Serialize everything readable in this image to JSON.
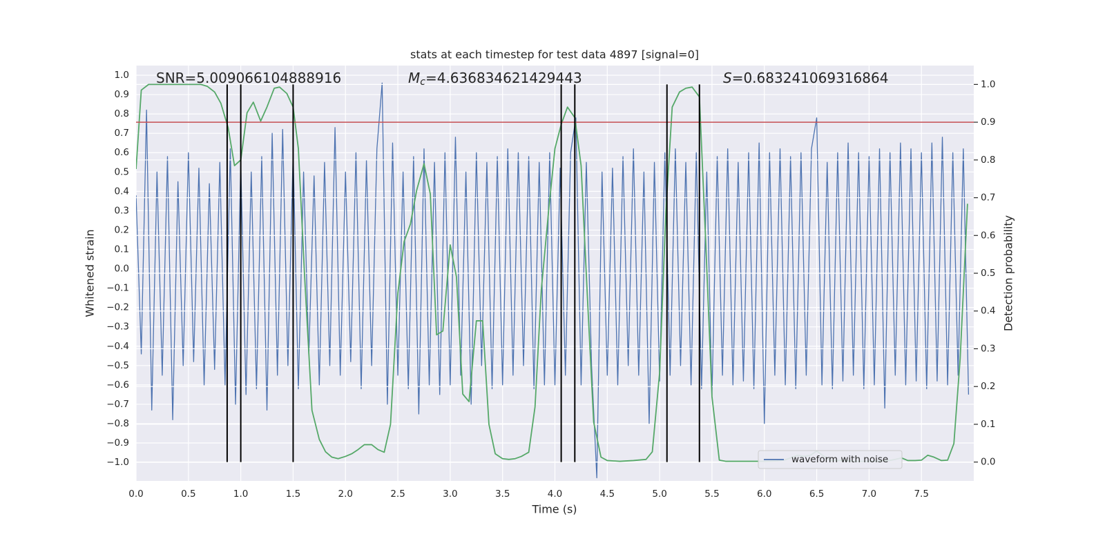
{
  "chart_data": {
    "type": "line",
    "title": "stats at each timestep for test data 4897 [signal=0]",
    "xlabel": "Time (s)",
    "ylabel": "Whitened strain",
    "y2label": "Detection probability",
    "xlim": [
      0,
      8
    ],
    "ylim": [
      -1.096,
      1.05
    ],
    "y2lim": [
      -0.05,
      1.05
    ],
    "grid": true,
    "legend": "lower right",
    "xticks": [
      {
        "value": 0,
        "label": "0.0"
      },
      0.5,
      {
        "value": 1,
        "label": "1.0"
      },
      1.5,
      {
        "value": 2,
        "label": "2.0"
      },
      2.5,
      {
        "value": 3,
        "label": "3.0"
      },
      3.5,
      {
        "value": 4,
        "label": "4.0"
      },
      4.5,
      {
        "value": 5,
        "label": "5.0"
      },
      5.5,
      {
        "value": 6,
        "label": "6.0"
      },
      6.5,
      {
        "value": 7,
        "label": "7.0"
      },
      7.5
    ],
    "yticks": [
      {
        "value": -1,
        "label": "−1.0"
      },
      {
        "value": -0.9,
        "label": "−0.9"
      },
      {
        "value": -0.8,
        "label": "−0.8"
      },
      {
        "value": -0.7,
        "label": "−0.7"
      },
      {
        "value": -0.6,
        "label": "−0.6"
      },
      {
        "value": -0.5,
        "label": "−0.5"
      },
      {
        "value": -0.4,
        "label": "−0.4"
      },
      {
        "value": -0.3,
        "label": "−0.3"
      },
      {
        "value": -0.2,
        "label": "−0.2"
      },
      {
        "value": -0.1,
        "label": "−0.1"
      },
      {
        "value": 0,
        "label": "0.0"
      },
      0.1,
      0.2,
      0.3,
      0.4,
      0.5,
      0.6,
      0.7,
      0.8,
      0.9,
      {
        "value": 1,
        "label": "1.0"
      }
    ],
    "y2ticks": [
      {
        "value": 0,
        "label": "0.0"
      },
      0.1,
      0.2,
      0.3,
      0.4,
      0.5,
      0.6,
      0.7,
      0.8,
      0.9,
      {
        "value": 1,
        "label": "1.0"
      }
    ],
    "annotations": [
      {
        "text": "SNR=5.009066104888916"
      },
      {
        "symbol": "M",
        "subscript": "c",
        "text": "=4.636834621429443"
      },
      {
        "symbol": "S",
        "text": "=0.683241069316864"
      }
    ],
    "series": [
      {
        "name": "waveform with noise",
        "color": "#4c72b0",
        "x": [
          0,
          0.05,
          0.1,
          0.15,
          0.2,
          0.25,
          0.3,
          0.35,
          0.4,
          0.45,
          0.5,
          0.55,
          0.6,
          0.65,
          0.7,
          0.75,
          0.8,
          0.85,
          0.9,
          0.95,
          1,
          1.05,
          1.1,
          1.15,
          1.2,
          1.25,
          1.3,
          1.35,
          1.4,
          1.45,
          1.5,
          1.55,
          1.6,
          1.65,
          1.7,
          1.75,
          1.8,
          1.85,
          1.9,
          1.95,
          2,
          2.05,
          2.1,
          2.15,
          2.2,
          2.25,
          2.3,
          2.35,
          2.4,
          2.45,
          2.5,
          2.55,
          2.6,
          2.65,
          2.7,
          2.75,
          2.8,
          2.85,
          2.9,
          2.95,
          3,
          3.05,
          3.1,
          3.15,
          3.2,
          3.25,
          3.3,
          3.35,
          3.4,
          3.45,
          3.5,
          3.55,
          3.6,
          3.65,
          3.7,
          3.75,
          3.8,
          3.85,
          3.9,
          3.95,
          4,
          4.05,
          4.1,
          4.15,
          4.2,
          4.25,
          4.3,
          4.35,
          4.4,
          4.45,
          4.5,
          4.55,
          4.6,
          4.65,
          4.7,
          4.75,
          4.8,
          4.85,
          4.9,
          4.95,
          5,
          5.05,
          5.1,
          5.15,
          5.2,
          5.25,
          5.3,
          5.35,
          5.4,
          5.45,
          5.5,
          5.55,
          5.6,
          5.65,
          5.7,
          5.75,
          5.8,
          5.85,
          5.9,
          5.95,
          6,
          6.05,
          6.1,
          6.15,
          6.2,
          6.25,
          6.3,
          6.35,
          6.4,
          6.45,
          6.5,
          6.55,
          6.6,
          6.65,
          6.7,
          6.75,
          6.8,
          6.85,
          6.9,
          6.95,
          7,
          7.05,
          7.1,
          7.15,
          7.2,
          7.25,
          7.3,
          7.35,
          7.4,
          7.45,
          7.5,
          7.55,
          7.6,
          7.65,
          7.7,
          7.75,
          7.8,
          7.85,
          7.9,
          7.95
        ],
        "values": [
          0.38,
          -0.44,
          0.82,
          -0.73,
          0.5,
          -0.55,
          0.58,
          -0.78,
          0.45,
          -0.5,
          0.6,
          -0.48,
          0.52,
          -0.6,
          0.44,
          -0.52,
          0.55,
          -0.6,
          0.62,
          -0.7,
          0.55,
          -0.65,
          0.5,
          -0.62,
          0.58,
          -0.73,
          0.7,
          -0.55,
          0.72,
          -0.5,
          0.6,
          -0.62,
          0.5,
          -0.45,
          0.48,
          -0.6,
          0.55,
          -0.5,
          0.73,
          -0.55,
          0.5,
          -0.48,
          0.6,
          -0.62,
          0.56,
          -0.5,
          0.62,
          0.96,
          -0.7,
          0.65,
          -0.55,
          0.5,
          -0.62,
          0.58,
          -0.75,
          0.62,
          -0.6,
          0.55,
          -0.65,
          0.6,
          -0.6,
          0.68,
          -0.55,
          0.5,
          -0.7,
          0.6,
          -0.5,
          0.55,
          -0.62,
          0.58,
          -0.6,
          0.62,
          -0.55,
          0.6,
          -0.5,
          0.58,
          -0.62,
          0.55,
          -0.6,
          0.6,
          -0.6,
          0.52,
          -0.55,
          0.6,
          0.78,
          -0.6,
          0.55,
          -0.5,
          -1.08,
          0.5,
          -0.55,
          0.52,
          -0.6,
          0.58,
          -0.5,
          0.62,
          -0.55,
          0.5,
          -0.8,
          0.55,
          -0.58,
          0.6,
          -0.55,
          0.62,
          -0.5,
          0.55,
          -0.6,
          0.6,
          -0.62,
          0.5,
          -0.65,
          0.58,
          -0.55,
          0.62,
          -0.6,
          0.55,
          -0.58,
          0.6,
          -0.62,
          0.65,
          -0.8,
          0.6,
          -0.55,
          0.62,
          -0.6,
          0.58,
          -0.62,
          0.6,
          -0.55,
          0.62,
          0.78,
          -0.6,
          0.55,
          -0.62,
          0.6,
          -0.58,
          0.65,
          -0.55,
          0.6,
          -0.62,
          0.58,
          -0.6,
          0.62,
          -0.72,
          0.6,
          -0.55,
          0.65,
          -0.6,
          0.62,
          -0.58,
          0.6,
          -0.62,
          0.65,
          -0.58,
          0.68,
          -0.6,
          0.6,
          -0.55,
          0.62,
          -0.65
        ]
      },
      {
        "color": "#55a868",
        "axis": "y2",
        "x": [
          0,
          0.05,
          0.12,
          0.25,
          0.38,
          0.5,
          0.62,
          0.68,
          0.75,
          0.81,
          0.88,
          0.94,
          1.0,
          1.06,
          1.12,
          1.19,
          1.25,
          1.32,
          1.37,
          1.44,
          1.5,
          1.55,
          1.61,
          1.68,
          1.75,
          1.81,
          1.87,
          1.93,
          2.0,
          2.06,
          2.12,
          2.18,
          2.25,
          2.31,
          2.37,
          2.43,
          2.5,
          2.56,
          2.62,
          2.68,
          2.75,
          2.81,
          2.87,
          2.93,
          3.0,
          3.06,
          3.12,
          3.18,
          3.25,
          3.31,
          3.37,
          3.43,
          3.5,
          3.56,
          3.62,
          3.68,
          3.75,
          3.81,
          3.87,
          3.94,
          4.0,
          4.06,
          4.12,
          4.19,
          4.25,
          4.31,
          4.37,
          4.44,
          4.5,
          4.62,
          4.75,
          4.87,
          4.93,
          5.0,
          5.06,
          5.12,
          5.19,
          5.25,
          5.31,
          5.38,
          5.44,
          5.5,
          5.57,
          5.63,
          5.75,
          5.88,
          6.0,
          6.12,
          6.19,
          6.25,
          6.32,
          6.38,
          6.44,
          6.5,
          6.57,
          6.63,
          6.75,
          6.88,
          7.06,
          7.19,
          7.25,
          7.31,
          7.37,
          7.44,
          7.5,
          7.56,
          7.62,
          7.69,
          7.75,
          7.81,
          7.87,
          7.94
        ],
        "values": [
          0.776,
          0.985,
          1.0,
          1.0,
          1.0,
          1.0,
          1.0,
          0.995,
          0.98,
          0.95,
          0.885,
          0.785,
          0.8,
          0.925,
          0.953,
          0.903,
          0.94,
          0.99,
          0.993,
          0.976,
          0.94,
          0.83,
          0.49,
          0.137,
          0.06,
          0.027,
          0.013,
          0.009,
          0.015,
          0.022,
          0.033,
          0.046,
          0.046,
          0.033,
          0.026,
          0.1,
          0.447,
          0.584,
          0.63,
          0.72,
          0.79,
          0.71,
          0.337,
          0.347,
          0.575,
          0.49,
          0.18,
          0.16,
          0.374,
          0.374,
          0.1,
          0.022,
          0.009,
          0.007,
          0.009,
          0.015,
          0.026,
          0.146,
          0.456,
          0.666,
          0.83,
          0.894,
          0.94,
          0.912,
          0.785,
          0.438,
          0.106,
          0.013,
          0.004,
          0.002,
          0.004,
          0.007,
          0.027,
          0.237,
          0.666,
          0.94,
          0.98,
          0.99,
          0.993,
          0.967,
          0.584,
          0.173,
          0.005,
          0.002,
          0.002,
          0.002,
          0.002,
          0.003,
          0.005,
          0.011,
          0.018,
          0.015,
          0.018,
          0.029,
          0.015,
          0.004,
          0.004,
          0.002,
          0.002,
          0.004,
          0.007,
          0.011,
          0.004,
          0.004,
          0.005,
          0.018,
          0.013,
          0.004,
          0.005,
          0.049,
          0.274,
          0.684
        ]
      }
    ],
    "hlines": [
      {
        "value": 0.9,
        "axis": "y2",
        "color": "#c44e52"
      }
    ],
    "vlines": {
      "x": [
        0.87,
        1.0,
        1.5,
        4.06,
        4.19,
        5.07,
        5.38
      ],
      "axis": "y2",
      "ymin": 0,
      "ymax": 1,
      "color": "#000000"
    }
  }
}
